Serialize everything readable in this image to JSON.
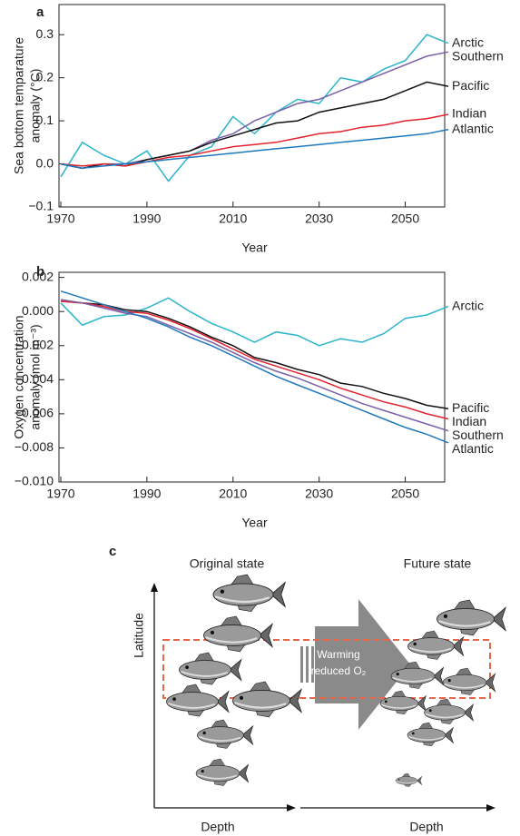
{
  "chart_data": [
    {
      "type": "line",
      "panel": "a",
      "ylabel": [
        "Sea bottom temparature",
        "anomaly (°C)"
      ],
      "xlabel": "Year",
      "x": [
        1970,
        1975,
        1980,
        1985,
        1990,
        1995,
        2000,
        2005,
        2010,
        2015,
        2020,
        2025,
        2030,
        2035,
        2040,
        2045,
        2050,
        2055,
        2060
      ],
      "xlim": [
        1970,
        2060
      ],
      "xticks": [
        1970,
        1990,
        2010,
        2030,
        2050
      ],
      "ylim": [
        -0.1,
        0.37
      ],
      "yticks": [
        {
          "value": -0.1,
          "label": "−0.1"
        },
        {
          "value": 0,
          "label": "0.0"
        },
        0.1,
        0.2,
        0.3
      ],
      "series": [
        {
          "name": "Arctic",
          "color": "#2bb5cc",
          "values": [
            -0.03,
            0.05,
            0.02,
            0.0,
            0.03,
            -0.04,
            0.02,
            0.04,
            0.11,
            0.07,
            0.12,
            0.15,
            0.14,
            0.2,
            0.19,
            0.22,
            0.24,
            0.3,
            0.28
          ]
        },
        {
          "name": "Southern",
          "color": "#7a5fa8",
          "values": [
            0,
            -0.01,
            0,
            0,
            0.01,
            0.02,
            0.03,
            0.055,
            0.07,
            0.1,
            0.12,
            0.14,
            0.15,
            0.17,
            0.19,
            0.21,
            0.23,
            0.25,
            0.26
          ]
        },
        {
          "name": "Pacific",
          "color": "#111111",
          "values": [
            0,
            -0.01,
            0,
            -0.005,
            0.01,
            0.02,
            0.03,
            0.05,
            0.065,
            0.08,
            0.095,
            0.1,
            0.12,
            0.13,
            0.14,
            0.15,
            0.17,
            0.19,
            0.18
          ]
        },
        {
          "name": "Indian",
          "color": "#e3222c",
          "values": [
            0,
            -0.005,
            0,
            -0.005,
            0.005,
            0.015,
            0.02,
            0.03,
            0.04,
            0.045,
            0.05,
            0.06,
            0.07,
            0.075,
            0.085,
            0.09,
            0.1,
            0.105,
            0.115
          ]
        },
        {
          "name": "Atlantic",
          "color": "#1f78bc",
          "values": [
            0,
            -0.01,
            -0.005,
            0,
            0.005,
            0.01,
            0.015,
            0.02,
            0.025,
            0.03,
            0.035,
            0.04,
            0.045,
            0.05,
            0.055,
            0.06,
            0.065,
            0.07,
            0.08
          ]
        }
      ]
    },
    {
      "type": "line",
      "panel": "b",
      "ylabel": [
        "Oxygen concentration",
        "anomaly (mol m⁻³)"
      ],
      "xlabel": "Year",
      "x": [
        1970,
        1975,
        1980,
        1985,
        1990,
        1995,
        2000,
        2005,
        2010,
        2015,
        2020,
        2025,
        2030,
        2035,
        2040,
        2045,
        2050,
        2055,
        2060
      ],
      "xlim": [
        1970,
        2060
      ],
      "xticks": [
        1970,
        1990,
        2010,
        2030,
        2050
      ],
      "ylim": [
        -0.01,
        0.0023
      ],
      "yticks": [
        {
          "value": -0.01,
          "label": "−0.010"
        },
        {
          "value": -0.008,
          "label": "−0.008"
        },
        {
          "value": -0.006,
          "label": "−0.006"
        },
        {
          "value": -0.004,
          "label": "−0.004"
        },
        {
          "value": -0.002,
          "label": "−0.002"
        },
        {
          "value": 0,
          "label": "0.000"
        },
        0.002
      ],
      "series": [
        {
          "name": "Arctic",
          "color": "#2bb5cc",
          "values": [
            0.0005,
            -0.0008,
            -0.0003,
            -0.0002,
            0.0002,
            0.0008,
            0.0,
            -0.0007,
            -0.0012,
            -0.0018,
            -0.0012,
            -0.0014,
            -0.002,
            -0.0016,
            -0.0018,
            -0.0013,
            -0.0004,
            -0.0002,
            0.0003
          ]
        },
        {
          "name": "Pacific",
          "color": "#111111",
          "values": [
            0.0006,
            0.0005,
            0.0004,
            0.0001,
            0.0,
            -0.0004,
            -0.0009,
            -0.0015,
            -0.002,
            -0.0027,
            -0.003,
            -0.0034,
            -0.0037,
            -0.0042,
            -0.0044,
            -0.0048,
            -0.0051,
            -0.0055,
            -0.0057
          ]
        },
        {
          "name": "Indian",
          "color": "#e3222c",
          "values": [
            0.0006,
            0.0005,
            0.0003,
            0,
            -0.0001,
            -0.0005,
            -0.001,
            -0.0016,
            -0.0022,
            -0.0028,
            -0.0032,
            -0.0036,
            -0.004,
            -0.0045,
            -0.0049,
            -0.0053,
            -0.0056,
            -0.006,
            -0.0063
          ]
        },
        {
          "name": "Southern",
          "color": "#7a5fa8",
          "values": [
            0.0007,
            0.0005,
            0.0002,
            -0.0001,
            -0.0003,
            -0.0008,
            -0.0013,
            -0.0018,
            -0.0024,
            -0.003,
            -0.0035,
            -0.0039,
            -0.0044,
            -0.0049,
            -0.0054,
            -0.0058,
            -0.0062,
            -0.0066,
            -0.007
          ]
        },
        {
          "name": "Atlantic",
          "color": "#1f78bc",
          "values": [
            0.0012,
            0.0008,
            0.0004,
            0,
            -0.0004,
            -0.0009,
            -0.0015,
            -0.002,
            -0.0026,
            -0.0032,
            -0.0038,
            -0.0043,
            -0.0048,
            -0.0053,
            -0.0058,
            -0.0063,
            -0.0068,
            -0.0072,
            -0.0077
          ]
        }
      ]
    }
  ],
  "diagram": {
    "panel": "c",
    "left_title": "Original state",
    "right_title": "Future state",
    "y_axis": "Latitude",
    "x_axis_left": "Depth",
    "x_axis_right": "Depth",
    "arrow_label": [
      "Warming",
      "reduced O₂"
    ]
  }
}
